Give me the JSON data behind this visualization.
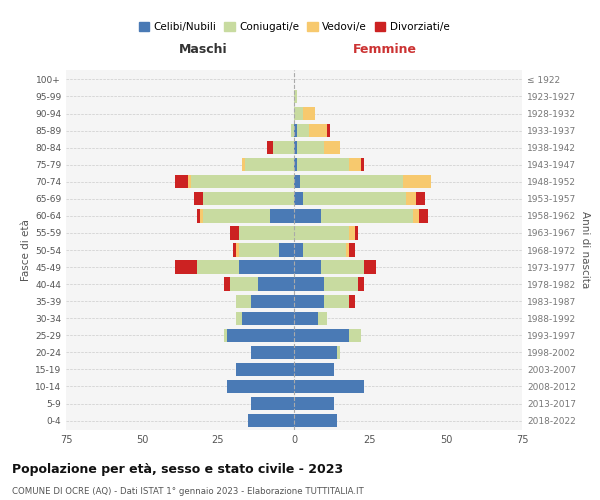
{
  "age_groups": [
    "0-4",
    "5-9",
    "10-14",
    "15-19",
    "20-24",
    "25-29",
    "30-34",
    "35-39",
    "40-44",
    "45-49",
    "50-54",
    "55-59",
    "60-64",
    "65-69",
    "70-74",
    "75-79",
    "80-84",
    "85-89",
    "90-94",
    "95-99",
    "100+"
  ],
  "birth_years": [
    "2018-2022",
    "2013-2017",
    "2008-2012",
    "2003-2007",
    "1998-2002",
    "1993-1997",
    "1988-1992",
    "1983-1987",
    "1978-1982",
    "1973-1977",
    "1968-1972",
    "1963-1967",
    "1958-1962",
    "1953-1957",
    "1948-1952",
    "1943-1947",
    "1938-1942",
    "1933-1937",
    "1928-1932",
    "1923-1927",
    "≤ 1922"
  ],
  "maschi": {
    "celibi": [
      15,
      14,
      22,
      19,
      14,
      22,
      17,
      14,
      12,
      18,
      5,
      0,
      8,
      0,
      0,
      0,
      0,
      0,
      0,
      0,
      0
    ],
    "coniugati": [
      0,
      0,
      0,
      0,
      0,
      1,
      2,
      5,
      9,
      14,
      13,
      18,
      22,
      30,
      34,
      16,
      7,
      1,
      0,
      0,
      0
    ],
    "vedovi": [
      0,
      0,
      0,
      0,
      0,
      0,
      0,
      0,
      0,
      0,
      1,
      0,
      1,
      0,
      1,
      1,
      0,
      0,
      0,
      0,
      0
    ],
    "divorziati": [
      0,
      0,
      0,
      0,
      0,
      0,
      0,
      0,
      2,
      7,
      1,
      3,
      1,
      3,
      4,
      0,
      2,
      0,
      0,
      0,
      0
    ]
  },
  "femmine": {
    "nubili": [
      14,
      13,
      23,
      13,
      14,
      18,
      8,
      10,
      10,
      9,
      3,
      0,
      9,
      3,
      2,
      1,
      1,
      1,
      0,
      0,
      0
    ],
    "coniugate": [
      0,
      0,
      0,
      0,
      1,
      4,
      3,
      8,
      11,
      14,
      14,
      18,
      30,
      34,
      34,
      17,
      9,
      4,
      3,
      1,
      0
    ],
    "vedove": [
      0,
      0,
      0,
      0,
      0,
      0,
      0,
      0,
      0,
      0,
      1,
      2,
      2,
      3,
      9,
      4,
      5,
      6,
      4,
      0,
      0
    ],
    "divorziate": [
      0,
      0,
      0,
      0,
      0,
      0,
      0,
      2,
      2,
      4,
      2,
      1,
      3,
      3,
      0,
      1,
      0,
      1,
      0,
      0,
      0
    ]
  },
  "colors": {
    "celibi": "#4a7ab5",
    "coniugati": "#c8dba0",
    "vedovi": "#f7c96e",
    "divorziati": "#cc2222"
  },
  "xlim": 75,
  "title": "Popolazione per età, sesso e stato civile - 2023",
  "subtitle": "COMUNE DI OCRE (AQ) - Dati ISTAT 1° gennaio 2023 - Elaborazione TUTTITALIA.IT",
  "xlabel_left": "Maschi",
  "xlabel_right": "Femmine",
  "ylabel_left": "Fasce di età",
  "ylabel_right": "Anni di nascita",
  "legend_labels": [
    "Celibi/Nubili",
    "Coniugati/e",
    "Vedovi/e",
    "Divorziati/e"
  ],
  "background_color": "#ffffff",
  "grid_color": "#cccccc"
}
